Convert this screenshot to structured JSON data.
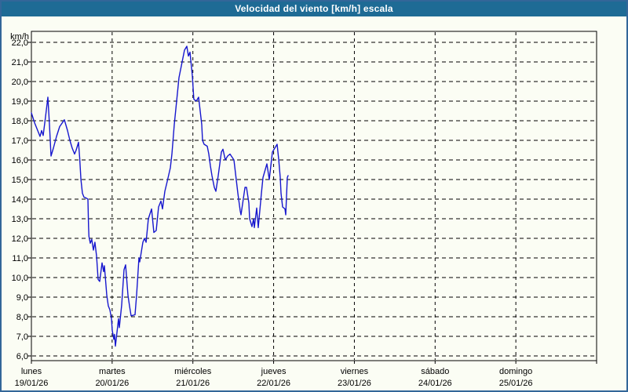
{
  "window": {
    "title": "Velocidad del viento [km/h] escala"
  },
  "colors": {
    "titlebar_bg": "#1E6B95",
    "titlebar_text": "#FFFFFF",
    "window_border": "#336699",
    "chart_bg": "#FBFDF4",
    "axis_and_grid": "#000000",
    "line": "#1717CE"
  },
  "chart_data": {
    "type": "line",
    "title": "Velocidad del viento [km/h] escala",
    "ylabel": "km/h",
    "xlabel": "",
    "grid": "dashed",
    "legend": "none",
    "y_axis": {
      "min": 6.0,
      "max": 22.0,
      "step": 1.0,
      "unit_label": "km/h",
      "tick_labels": [
        "22,0",
        "21,0",
        "20,0",
        "19,0",
        "18,0",
        "17,0",
        "16,0",
        "15,0",
        "14,0",
        "13,0",
        "12,0",
        "11,0",
        "10,0",
        "9,0",
        "8,0",
        "7,0",
        "6,0"
      ],
      "tick_values": [
        22,
        21,
        20,
        19,
        18,
        17,
        16,
        15,
        14,
        13,
        12,
        11,
        10,
        9,
        8,
        7,
        6
      ]
    },
    "x_axis": {
      "range_days": [
        0,
        7
      ],
      "ticks": [
        {
          "day": "lunes",
          "date": "19/01/26"
        },
        {
          "day": "martes",
          "date": "20/01/26"
        },
        {
          "day": "miércoles",
          "date": "21/01/26"
        },
        {
          "day": "jueves",
          "date": "22/01/26"
        },
        {
          "day": "viernes",
          "date": "23/01/26"
        },
        {
          "day": "sábado",
          "date": "24/01/26"
        },
        {
          "day": "domingo",
          "date": "25/01/26"
        }
      ]
    },
    "series": [
      {
        "name": "Velocidad del viento [km/h]",
        "color": "#1717CE",
        "x_unit": "days_from_monday_00h",
        "points": [
          [
            0.0,
            18.4
          ],
          [
            0.039,
            17.9
          ],
          [
            0.078,
            17.5
          ],
          [
            0.107,
            17.2
          ],
          [
            0.126,
            17.5
          ],
          [
            0.146,
            17.25
          ],
          [
            0.175,
            18.2
          ],
          [
            0.204,
            19.2
          ],
          [
            0.224,
            17.8
          ],
          [
            0.243,
            16.2
          ],
          [
            0.272,
            16.6
          ],
          [
            0.311,
            17.2
          ],
          [
            0.35,
            17.7
          ],
          [
            0.408,
            18.05
          ],
          [
            0.447,
            17.5
          ],
          [
            0.476,
            17.0
          ],
          [
            0.506,
            16.6
          ],
          [
            0.535,
            16.3
          ],
          [
            0.554,
            16.5
          ],
          [
            0.583,
            16.9
          ],
          [
            0.598,
            16.1
          ],
          [
            0.613,
            15.0
          ],
          [
            0.632,
            14.3
          ],
          [
            0.651,
            14.1
          ],
          [
            0.68,
            14.05
          ],
          [
            0.7,
            14.0
          ],
          [
            0.708,
            12.6
          ],
          [
            0.713,
            12.1
          ],
          [
            0.729,
            11.75
          ],
          [
            0.748,
            11.95
          ],
          [
            0.768,
            11.4
          ],
          [
            0.787,
            11.8
          ],
          [
            0.807,
            11.1
          ],
          [
            0.826,
            9.9
          ],
          [
            0.846,
            9.8
          ],
          [
            0.875,
            10.75
          ],
          [
            0.894,
            10.3
          ],
          [
            0.904,
            10.6
          ],
          [
            0.933,
            9.1
          ],
          [
            0.953,
            8.55
          ],
          [
            0.972,
            8.35
          ],
          [
            0.992,
            7.9
          ],
          [
            1.001,
            7.3
          ],
          [
            1.021,
            6.85
          ],
          [
            1.03,
            7.1
          ],
          [
            1.04,
            6.5
          ],
          [
            1.06,
            7.2
          ],
          [
            1.079,
            7.9
          ],
          [
            1.089,
            7.45
          ],
          [
            1.118,
            8.6
          ],
          [
            1.147,
            10.4
          ],
          [
            1.167,
            10.65
          ],
          [
            1.196,
            9.1
          ],
          [
            1.215,
            8.55
          ],
          [
            1.235,
            8.05
          ],
          [
            1.283,
            8.1
          ],
          [
            1.303,
            9.1
          ],
          [
            1.332,
            11.0
          ],
          [
            1.342,
            10.8
          ],
          [
            1.381,
            11.8
          ],
          [
            1.4,
            12.0
          ],
          [
            1.42,
            11.8
          ],
          [
            1.449,
            13.0
          ],
          [
            1.488,
            13.5
          ],
          [
            1.517,
            12.3
          ],
          [
            1.546,
            12.4
          ],
          [
            1.575,
            13.6
          ],
          [
            1.604,
            13.9
          ],
          [
            1.624,
            13.5
          ],
          [
            1.653,
            14.4
          ],
          [
            1.682,
            14.9
          ],
          [
            1.721,
            15.6
          ],
          [
            1.74,
            16.3
          ],
          [
            1.769,
            17.8
          ],
          [
            1.799,
            19.0
          ],
          [
            1.828,
            20.2
          ],
          [
            1.867,
            21.0
          ],
          [
            1.896,
            21.6
          ],
          [
            1.925,
            21.8
          ],
          [
            1.944,
            21.3
          ],
          [
            1.964,
            21.5
          ],
          [
            1.993,
            20.3
          ],
          [
            2.012,
            19.1
          ],
          [
            2.042,
            19.0
          ],
          [
            2.071,
            19.2
          ],
          [
            2.09,
            18.5
          ],
          [
            2.11,
            17.8
          ],
          [
            2.119,
            17.0
          ],
          [
            2.139,
            16.8
          ],
          [
            2.178,
            16.7
          ],
          [
            2.197,
            16.3
          ],
          [
            2.217,
            15.7
          ],
          [
            2.236,
            15.2
          ],
          [
            2.265,
            14.6
          ],
          [
            2.285,
            14.4
          ],
          [
            2.314,
            15.2
          ],
          [
            2.353,
            16.4
          ],
          [
            2.372,
            16.55
          ],
          [
            2.401,
            16.0
          ],
          [
            2.431,
            16.2
          ],
          [
            2.46,
            16.3
          ],
          [
            2.508,
            16.0
          ],
          [
            2.557,
            14.3
          ],
          [
            2.586,
            13.4
          ],
          [
            2.596,
            13.2
          ],
          [
            2.645,
            14.6
          ],
          [
            2.664,
            14.6
          ],
          [
            2.693,
            13.8
          ],
          [
            2.703,
            13.0
          ],
          [
            2.732,
            12.6
          ],
          [
            2.751,
            13.0
          ],
          [
            2.761,
            12.55
          ],
          [
            2.79,
            13.55
          ],
          [
            2.81,
            12.55
          ],
          [
            2.849,
            14.3
          ],
          [
            2.868,
            15.1
          ],
          [
            2.917,
            15.8
          ],
          [
            2.946,
            15.0
          ],
          [
            2.985,
            16.4
          ],
          [
            3.014,
            16.6
          ],
          [
            3.043,
            16.8
          ],
          [
            3.063,
            16.0
          ],
          [
            3.082,
            15.1
          ],
          [
            3.092,
            14.3
          ],
          [
            3.111,
            13.6
          ],
          [
            3.14,
            13.5
          ],
          [
            3.15,
            13.2
          ],
          [
            3.169,
            15.1
          ],
          [
            3.179,
            15.2
          ]
        ]
      }
    ]
  }
}
